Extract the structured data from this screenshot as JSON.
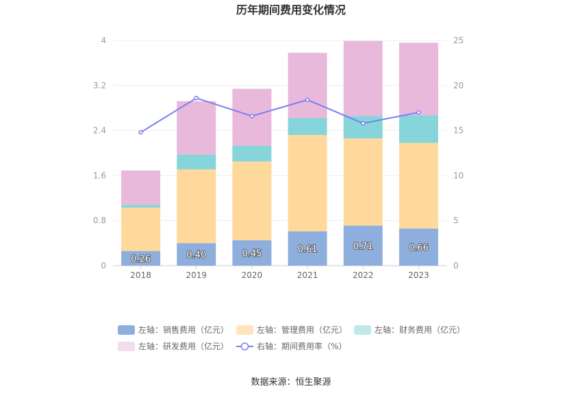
{
  "chart_data": {
    "type": "bar",
    "title": "历年期间费用变化情况",
    "categories": [
      "2018",
      "2019",
      "2020",
      "2021",
      "2022",
      "2023"
    ],
    "series": [
      {
        "name": "左轴：销售费用（亿元）",
        "axis": "left",
        "color": "#8eaedd",
        "values": [
          0.26,
          0.4,
          0.45,
          0.61,
          0.71,
          0.66
        ],
        "labels": [
          "0.26",
          "0.40",
          "0.45",
          "0.61",
          "0.71",
          "0.66"
        ]
      },
      {
        "name": "左轴：管理费用（亿元）",
        "axis": "left",
        "color": "#ffd89b",
        "values": [
          0.77,
          1.31,
          1.4,
          1.71,
          1.55,
          1.52
        ]
      },
      {
        "name": "左轴：财务费用（亿元）",
        "axis": "left",
        "color": "#86d5da",
        "values": [
          0.05,
          0.26,
          0.28,
          0.3,
          0.4,
          0.49
        ]
      },
      {
        "name": "左轴：研发费用（亿元）",
        "axis": "left",
        "color": "#e8b9da",
        "values": [
          0.61,
          0.95,
          1.01,
          1.16,
          1.33,
          1.29
        ]
      },
      {
        "name": "右轴：期间费用率（%）",
        "axis": "right",
        "type": "line",
        "color": "#7b7ff0",
        "values": [
          14.8,
          18.6,
          16.6,
          18.4,
          15.8,
          17.0
        ]
      }
    ],
    "left_axis": {
      "ylim": [
        0,
        4
      ],
      "ticks": [
        "0",
        "0.8",
        "1.6",
        "2.4",
        "3.2",
        "4"
      ]
    },
    "right_axis": {
      "ylim": [
        0,
        25
      ],
      "ticks": [
        "0",
        "5",
        "10",
        "15",
        "20",
        "25"
      ]
    },
    "grid": true,
    "legend_position": "bottom"
  },
  "legend": [
    {
      "label": "左轴：销售费用（亿元）",
      "color": "#8eaedd",
      "marker": "rect"
    },
    {
      "label": "左轴：管理费用（亿元）",
      "color": "#ffe4bd",
      "marker": "rect"
    },
    {
      "label": "左轴：财务费用（亿元）",
      "color": "#c0e9ec",
      "marker": "rect"
    },
    {
      "label": "左轴：研发费用（亿元）",
      "color": "#f3dcec",
      "marker": "rect"
    },
    {
      "label": "右轴：期间费用率（%）",
      "color": "#7b7ff0",
      "marker": "line-circle"
    }
  ],
  "source": "数据来源：恒生聚源"
}
